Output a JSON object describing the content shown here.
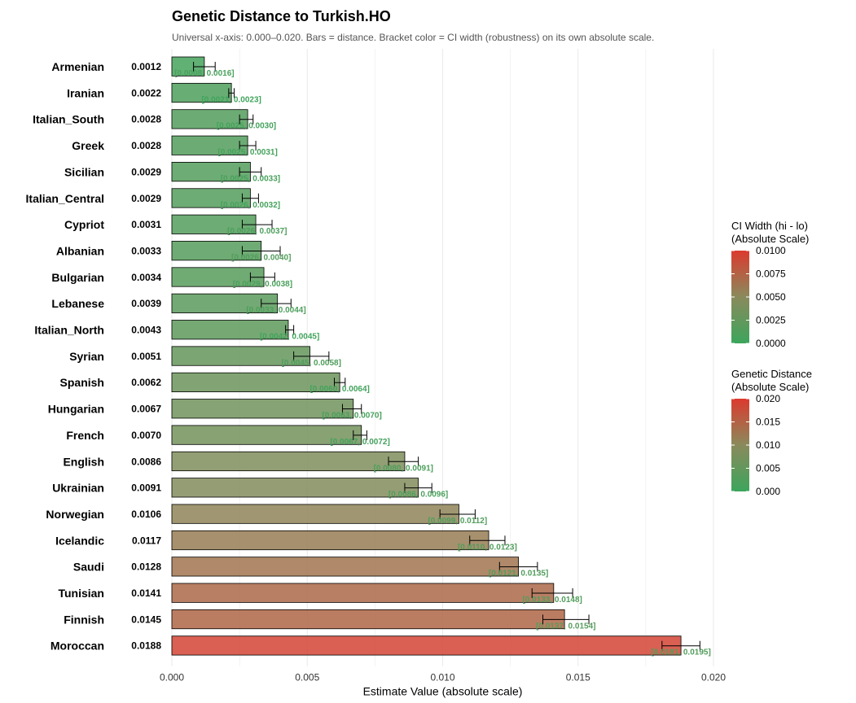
{
  "chart_data": {
    "type": "bar",
    "orientation": "horizontal",
    "title": "Genetic Distance to Turkish.HO",
    "subtitle": "Universal x-axis: 0.000–0.020. Bars = distance. Bracket color = CI width (robustness) on its own absolute scale.",
    "xlabel": "Estimate Value (absolute scale)",
    "ylabel": "",
    "xlim": [
      0,
      0.02
    ],
    "x_ticks": [
      "0.000",
      "0.005",
      "0.010",
      "0.015",
      "0.020"
    ],
    "grid": "vertical",
    "legend_position": "right",
    "categories": [
      "Armenian",
      "Iranian",
      "Italian_South",
      "Greek",
      "Sicilian",
      "Italian_Central",
      "Cypriot",
      "Albanian",
      "Bulgarian",
      "Lebanese",
      "Italian_North",
      "Syrian",
      "Spanish",
      "Hungarian",
      "French",
      "English",
      "Ukrainian",
      "Norwegian",
      "Icelandic",
      "Saudi",
      "Tunisian",
      "Finnish",
      "Moroccan"
    ],
    "values": [
      0.0012,
      0.0022,
      0.0028,
      0.0028,
      0.0029,
      0.0029,
      0.0031,
      0.0033,
      0.0034,
      0.0039,
      0.0043,
      0.0051,
      0.0062,
      0.0067,
      0.007,
      0.0086,
      0.0091,
      0.0106,
      0.0117,
      0.0128,
      0.0141,
      0.0145,
      0.0188
    ],
    "value_labels": [
      "0.0012",
      "0.0022",
      "0.0028",
      "0.0028",
      "0.0029",
      "0.0029",
      "0.0031",
      "0.0033",
      "0.0034",
      "0.0039",
      "0.0043",
      "0.0051",
      "0.0062",
      "0.0067",
      "0.0070",
      "0.0086",
      "0.0091",
      "0.0106",
      "0.0117",
      "0.0128",
      "0.0141",
      "0.0145",
      "0.0188"
    ],
    "ci_lo": [
      0.0008,
      0.0021,
      0.0025,
      0.0025,
      0.0025,
      0.0026,
      0.0026,
      0.0026,
      0.0029,
      0.0033,
      0.0042,
      0.0045,
      0.006,
      0.0063,
      0.0067,
      0.008,
      0.0086,
      0.0099,
      0.011,
      0.0121,
      0.0133,
      0.0137,
      0.0181
    ],
    "ci_hi": [
      0.0016,
      0.0023,
      0.003,
      0.0031,
      0.0033,
      0.0032,
      0.0037,
      0.004,
      0.0038,
      0.0044,
      0.0045,
      0.0058,
      0.0064,
      0.007,
      0.0072,
      0.0091,
      0.0096,
      0.0112,
      0.0123,
      0.0135,
      0.0148,
      0.0154,
      0.0195
    ],
    "ci_labels": [
      "[0.0008, 0.0016]",
      "[0.0021, 0.0023]",
      "[0.0025, 0.0030]",
      "[0.0025, 0.0031]",
      "[0.0025, 0.0033]",
      "[0.0026, 0.0032]",
      "[0.0026, 0.0037]",
      "[0.0026, 0.0040]",
      "[0.0029, 0.0038]",
      "[0.0033, 0.0044]",
      "[0.0042, 0.0045]",
      "[0.0045, 0.0058]",
      "[0.0060, 0.0064]",
      "[0.0063, 0.0070]",
      "[0.0067, 0.0072]",
      "[0.0080, 0.0091]",
      "[0.0086, 0.0096]",
      "[0.0099, 0.0112]",
      "[0.0110, 0.0123]",
      "[0.0121, 0.0135]",
      "[0.0133, 0.0148]",
      "[0.0137, 0.0154]",
      "[0.0181, 0.0195]"
    ],
    "legends": [
      {
        "title": [
          "CI Width (hi - lo)",
          "(Absolute Scale)"
        ],
        "range": [
          0,
          0.01
        ],
        "ticks": [
          "0.0000",
          "0.0025",
          "0.0050",
          "0.0075",
          "0.0100"
        ]
      },
      {
        "title": [
          "Genetic Distance",
          "(Absolute Scale)"
        ],
        "range": [
          0,
          0.02
        ],
        "ticks": [
          "0.000",
          "0.005",
          "0.010",
          "0.015",
          "0.020"
        ]
      }
    ],
    "colors": {
      "low": "#3ca55c",
      "mid": "#8a8a5c",
      "high": "#dc3a2e",
      "ci_label": "#4e9a52",
      "grid": "#ebebeb"
    }
  }
}
